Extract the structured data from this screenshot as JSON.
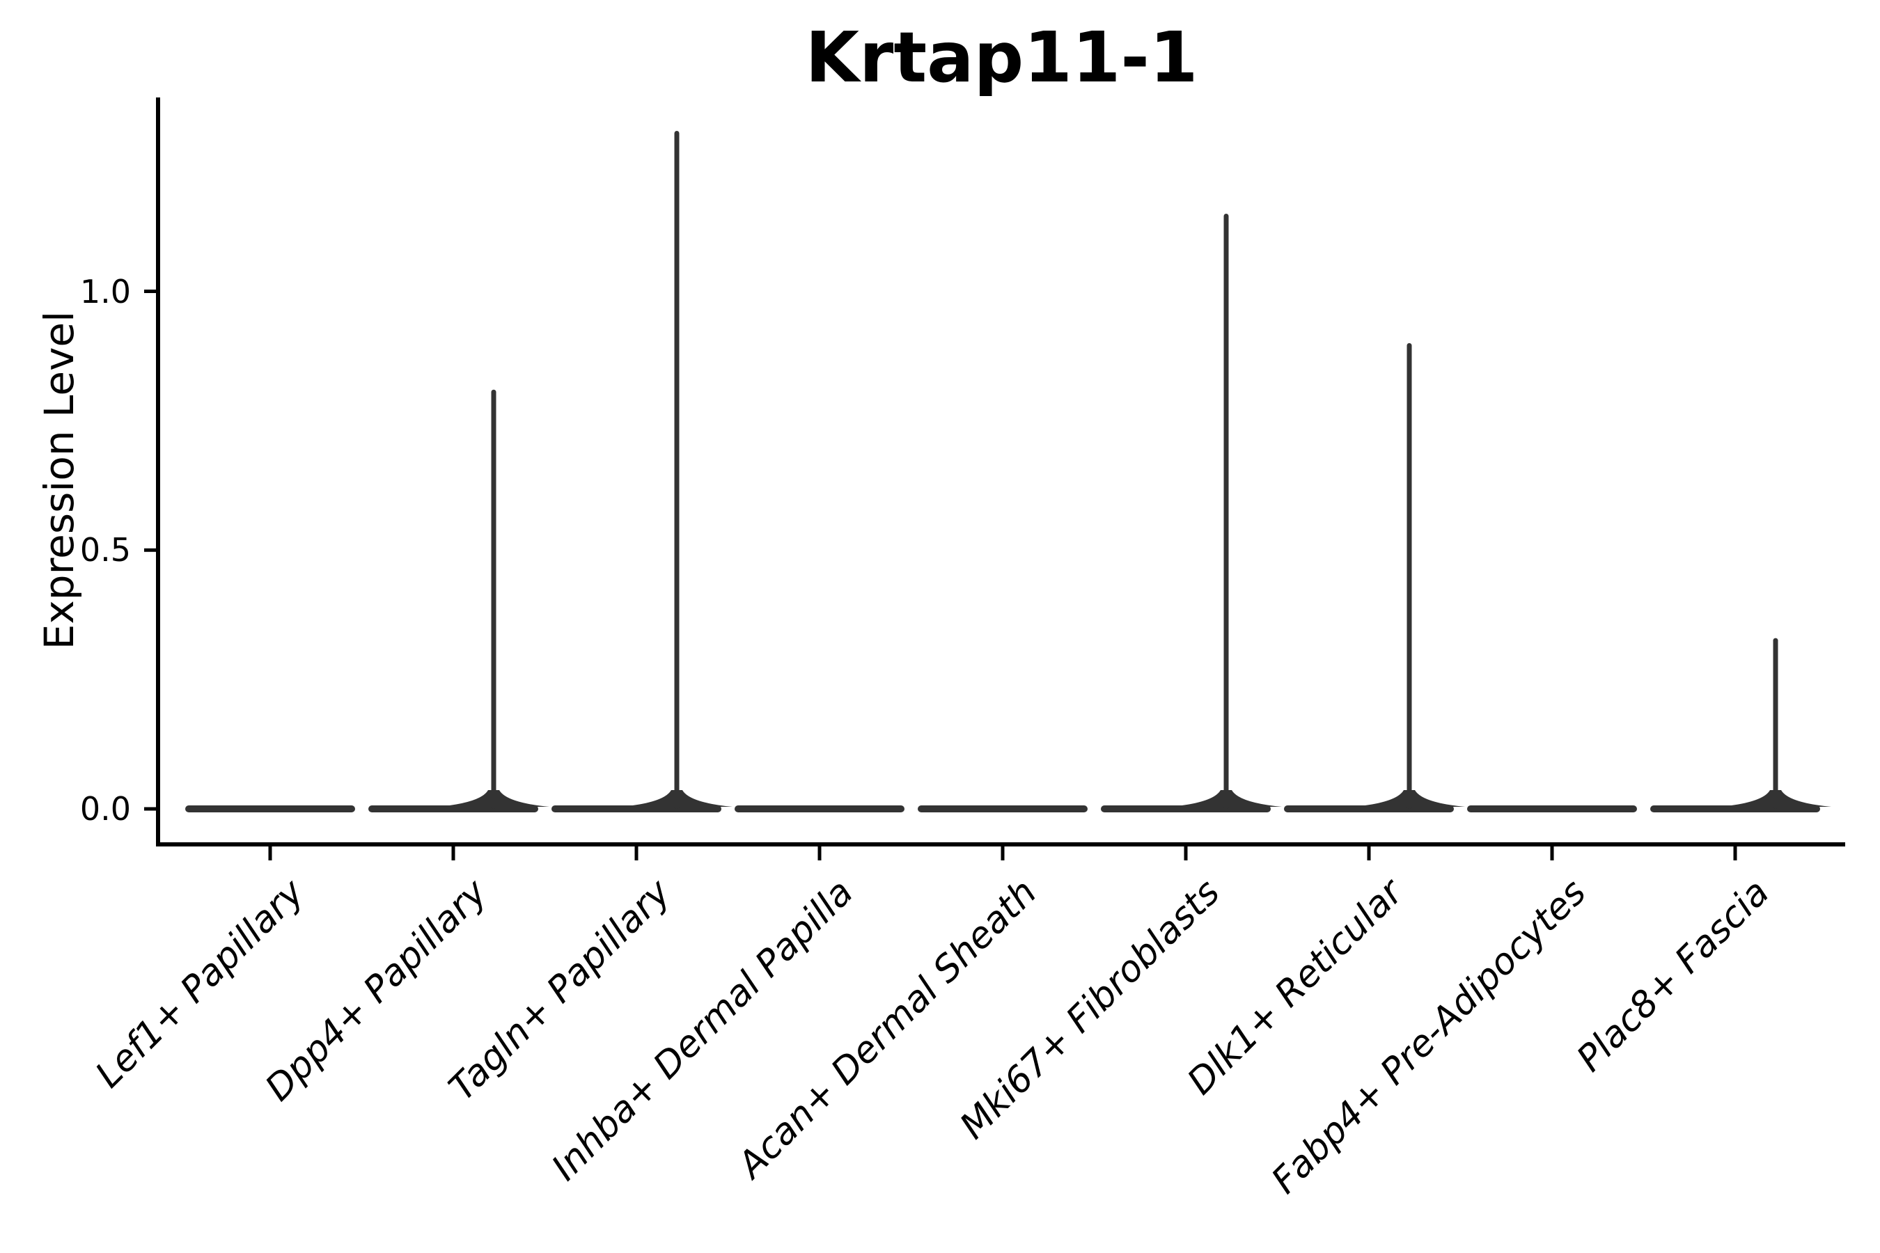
{
  "figure": {
    "title": "Krtap11-1",
    "background": "#ffffff"
  },
  "chart_data": {
    "type": "violin",
    "title": "Krtap11-1",
    "xlabel": "",
    "ylabel": "Expression Level",
    "categories": [
      "Lef1+ Papillary",
      "Dpp4+ Papillary",
      "Tagln+ Papillary",
      "Inhba+ Dermal Papilla",
      "Acan+ Dermal Sheath",
      "Mki67+ Fibroblasts",
      "Dlk1+ Reticular",
      "Fabp4+ Pre-Adipocytes",
      "Plac8+ Fascia"
    ],
    "series": [
      {
        "name": "max_expression",
        "values": [
          0.0,
          0.81,
          1.31,
          0.0,
          0.0,
          1.15,
          0.9,
          0.0,
          0.33
        ]
      },
      {
        "name": "bulk_expression_mode",
        "values": [
          0.0,
          0.0,
          0.0,
          0.0,
          0.0,
          0.0,
          0.0,
          0.0,
          0.0
        ]
      }
    ],
    "yticks": [
      {
        "label": "0.0",
        "value": 0.0
      },
      {
        "label": "0.5",
        "value": 0.5
      },
      {
        "label": "1.0",
        "value": 1.0
      }
    ],
    "ylim": [
      -0.07,
      1.38
    ],
    "grid": false,
    "legend": "none",
    "violin_color": "#333333",
    "axis_color": "#000000",
    "spike_offset_fraction": 0.22,
    "notes": "Each cell population shows a flat violin collapsed at 0 expression; thin density spikes rise to the max_expression value for Dpp4+ Papillary, Tagln+ Papillary, Mki67+ Fibroblasts, Dlk1+ Reticular and Plac8+ Fascia."
  }
}
